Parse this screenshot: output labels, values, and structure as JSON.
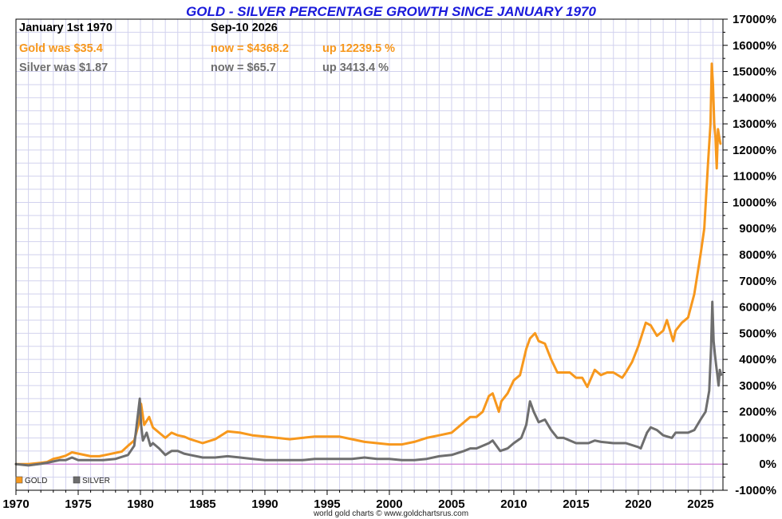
{
  "header": {
    "title": "GOLD - SILVER PERCENTAGE GROWTH SINCE JANUARY 1970",
    "start_label": "January 1st 1970",
    "end_label": "Sep-10  2026",
    "gold_was": "Gold was $35.4",
    "gold_now": "now = $4368.2",
    "gold_up": "up 12239.5 %",
    "silver_was": "Silver was $1.87",
    "silver_now": "now = $65.7",
    "silver_up": "up 3413.4 %"
  },
  "footer": "world gold charts © www.goldchartsrus.com",
  "colors": {
    "gold": "#f7981d",
    "silver": "#6e6e6e",
    "title": "#1a1adb",
    "grid": "#d2d2ee",
    "zero_line": "#cc66cc"
  },
  "chart_data": {
    "type": "line",
    "title": "GOLD - SILVER PERCENTAGE GROWTH SINCE JANUARY 1970",
    "xlabel": "",
    "ylabel": "",
    "xlim": [
      1970,
      2026.8
    ],
    "ylim": [
      -1000,
      17000
    ],
    "x_ticks": [
      1970,
      1975,
      1980,
      1985,
      1990,
      1995,
      2000,
      2005,
      2010,
      2015,
      2020,
      2025
    ],
    "x_tick_labels": [
      "1970",
      "1975",
      "1980",
      "1985",
      "1990",
      "1995",
      "2000",
      "2005",
      "2010",
      "2015",
      "2020",
      "2025"
    ],
    "y_ticks": [
      -1000,
      0,
      1000,
      2000,
      3000,
      4000,
      5000,
      6000,
      7000,
      8000,
      9000,
      10000,
      11000,
      12000,
      13000,
      14000,
      15000,
      16000,
      17000
    ],
    "y_tick_labels": [
      "-1000%",
      "0%",
      "1000%",
      "2000%",
      "3000%",
      "4000%",
      "5000%",
      "6000%",
      "7000%",
      "8000%",
      "9000%",
      "10000%",
      "11000%",
      "12000%",
      "13000%",
      "14000%",
      "15000%",
      "16000%",
      "17000%"
    ],
    "grid": true,
    "legend_position": "bottom-left",
    "series": [
      {
        "name": "GOLD",
        "color": "#f7981d",
        "x": [
          1970,
          1971,
          1972,
          1972.5,
          1973,
          1973.5,
          1974,
          1974.5,
          1975,
          1976,
          1976.7,
          1977.5,
          1978.5,
          1979,
          1979.5,
          1979.9,
          1980.05,
          1980.3,
          1980.7,
          1981,
          1981.5,
          1982,
          1982.5,
          1983,
          1983.5,
          1984,
          1985,
          1986,
          1987,
          1988,
          1989,
          1990,
          1991,
          1992,
          1993,
          1994,
          1995,
          1996,
          1997,
          1998,
          1999,
          2000,
          2001,
          2002,
          2003,
          2004,
          2005,
          2006,
          2006.5,
          2007,
          2007.5,
          2008,
          2008.3,
          2008.8,
          2009,
          2009.5,
          2010,
          2010.5,
          2011,
          2011.3,
          2011.7,
          2012,
          2012.5,
          2013,
          2013.5,
          2014,
          2014.5,
          2015,
          2015.5,
          2015.9,
          2016.5,
          2017,
          2017.5,
          2018,
          2018.7,
          2019,
          2019.5,
          2020,
          2020.6,
          2021,
          2021.5,
          2022,
          2022.3,
          2022.8,
          2023,
          2023.5,
          2024,
          2024.5,
          2025,
          2025.3,
          2025.6,
          2025.8,
          2025.9,
          2026.0,
          2026.1,
          2026.2,
          2026.3,
          2026.4,
          2026.5,
          2026.6
        ],
        "values": [
          0,
          0,
          50,
          80,
          200,
          250,
          320,
          450,
          400,
          300,
          300,
          380,
          480,
          700,
          900,
          1600,
          2300,
          1500,
          1800,
          1400,
          1200,
          1000,
          1200,
          1100,
          1050,
          950,
          800,
          950,
          1250,
          1200,
          1100,
          1050,
          1000,
          950,
          1000,
          1050,
          1050,
          1050,
          950,
          850,
          800,
          750,
          750,
          850,
          1000,
          1100,
          1200,
          1600,
          1800,
          1800,
          2000,
          2600,
          2700,
          2000,
          2400,
          2700,
          3200,
          3400,
          4400,
          4800,
          5000,
          4700,
          4600,
          4000,
          3500,
          3500,
          3500,
          3300,
          3300,
          2950,
          3600,
          3400,
          3500,
          3500,
          3300,
          3500,
          3900,
          4500,
          5400,
          5300,
          4900,
          5100,
          5500,
          4700,
          5100,
          5400,
          5600,
          6500,
          8000,
          9000,
          11500,
          13000,
          15300,
          14500,
          13000,
          12500,
          11300,
          12800,
          12500,
          12239.5
        ]
      },
      {
        "name": "SILVER",
        "color": "#6e6e6e",
        "x": [
          1970,
          1971,
          1972,
          1972.5,
          1973,
          1973.5,
          1974,
          1974.5,
          1975,
          1976,
          1977,
          1978,
          1979,
          1979.5,
          1979.95,
          1980.05,
          1980.2,
          1980.5,
          1980.8,
          1981,
          1981.5,
          1982,
          1982.5,
          1983,
          1983.5,
          1984,
          1985,
          1986,
          1987,
          1988,
          1989,
          1990,
          1991,
          1992,
          1993,
          1994,
          1995,
          1996,
          1997,
          1998,
          1999,
          2000,
          2001,
          2002,
          2003,
          2004,
          2005,
          2006,
          2006.5,
          2007,
          2008,
          2008.3,
          2008.9,
          2009.5,
          2010,
          2010.6,
          2011,
          2011.3,
          2011.6,
          2012,
          2012.5,
          2013,
          2013.5,
          2014,
          2015,
          2016,
          2016.5,
          2017,
          2018,
          2019,
          2020,
          2020.2,
          2020.7,
          2021,
          2021.5,
          2022,
          2022.7,
          2023,
          2024,
          2024.5,
          2025,
          2025.4,
          2025.7,
          2025.85,
          2025.95,
          2026.05,
          2026.15,
          2026.25,
          2026.35,
          2026.45,
          2026.55,
          2026.65
        ],
        "values": [
          0,
          -50,
          10,
          50,
          100,
          150,
          150,
          250,
          150,
          150,
          150,
          200,
          350,
          700,
          2500,
          1500,
          900,
          1200,
          700,
          800,
          600,
          350,
          500,
          500,
          400,
          350,
          250,
          250,
          300,
          250,
          200,
          150,
          150,
          150,
          150,
          200,
          200,
          200,
          200,
          250,
          200,
          200,
          150,
          150,
          200,
          300,
          350,
          500,
          600,
          600,
          800,
          900,
          500,
          600,
          800,
          1000,
          1500,
          2400,
          2000,
          1600,
          1700,
          1300,
          1000,
          1000,
          800,
          800,
          900,
          850,
          800,
          800,
          650,
          600,
          1200,
          1400,
          1300,
          1100,
          1000,
          1200,
          1200,
          1300,
          1700,
          2000,
          2800,
          4500,
          6200,
          4700,
          4200,
          3800,
          3400,
          3000,
          3600,
          3413.4
        ]
      }
    ]
  }
}
